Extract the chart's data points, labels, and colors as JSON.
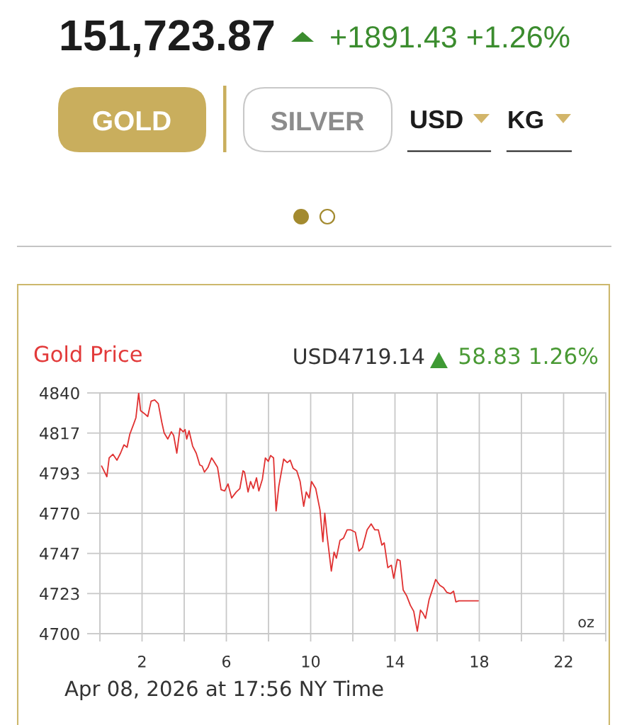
{
  "chart_data": {
    "type": "line",
    "title": "Gold Price",
    "annotations": [
      "151,723.87",
      "+1891.43 +1.26%",
      "GOLD",
      "SILVER",
      "USD",
      "KG",
      "USD4719.14",
      "58.83 1.26%",
      "oz",
      "Apr 08, 2026 at 17:56 NY Time"
    ],
    "x": [
      0.08,
      0.33,
      0.44,
      0.62,
      0.81,
      0.98,
      1.14,
      1.29,
      1.42,
      1.59,
      1.71,
      1.84,
      1.93,
      2.08,
      2.27,
      2.43,
      2.6,
      2.77,
      2.94,
      3.05,
      3.22,
      3.39,
      3.5,
      3.65,
      3.8,
      3.95,
      4.04,
      4.12,
      4.23,
      4.4,
      4.57,
      4.74,
      4.85,
      4.96,
      5.13,
      5.3,
      5.41,
      5.58,
      5.75,
      5.92,
      6.08,
      6.25,
      6.47,
      6.64,
      6.79,
      6.86,
      7.03,
      7.15,
      7.28,
      7.43,
      7.54,
      7.71,
      7.85,
      7.99,
      8.1,
      8.24,
      8.36,
      8.49,
      8.72,
      8.89,
      9.03,
      9.17,
      9.34,
      9.5,
      9.67,
      9.79,
      9.93,
      10.04,
      10.24,
      10.44,
      10.58,
      10.67,
      10.78,
      10.98,
      11.11,
      11.22,
      11.39,
      11.56,
      11.73,
      11.89,
      12.12,
      12.29,
      12.46,
      12.68,
      12.87,
      13.04,
      13.21,
      13.38,
      13.49,
      13.66,
      13.83,
      13.94,
      14.11,
      14.24,
      14.39,
      14.56,
      14.73,
      14.89,
      15.06,
      15.21,
      15.34,
      15.45,
      15.62,
      15.79,
      15.93,
      16.13,
      16.3,
      16.46,
      16.63,
      16.78,
      16.89,
      17.03,
      17.95
    ],
    "series": [
      {
        "color": "#e03131",
        "values": [
          4797.5,
          4791.3,
          4802.3,
          4804.3,
          4800.9,
          4805.0,
          4809.8,
          4808.4,
          4816.0,
          4821.5,
          4825.6,
          4840.0,
          4829.7,
          4828.3,
          4826.3,
          4835.2,
          4835.9,
          4833.8,
          4822.8,
          4816.7,
          4813.2,
          4817.4,
          4815.3,
          4805.0,
          4819.4,
          4817.4,
          4818.7,
          4813.2,
          4818.0,
          4809.1,
          4805.0,
          4798.1,
          4797.5,
          4794.0,
          4796.8,
          4802.2,
          4800.2,
          4796.8,
          4783.7,
          4783.0,
          4787.1,
          4778.9,
          4782.4,
          4784.4,
          4794.7,
          4794.0,
          4782.4,
          4788.5,
          4784.4,
          4790.6,
          4783.0,
          4789.9,
          4802.2,
          4800.2,
          4803.6,
          4802.2,
          4771.4,
          4785.8,
          4801.5,
          4799.5,
          4800.9,
          4796.1,
          4794.7,
          4788.5,
          4774.1,
          4782.4,
          4778.9,
          4788.5,
          4784.4,
          4772.1,
          4753.5,
          4770.0,
          4756.9,
          4736.4,
          4747.4,
          4743.9,
          4754.2,
          4755.6,
          4760.4,
          4760.4,
          4759.0,
          4748.0,
          4750.1,
          4760.4,
          4763.8,
          4760.4,
          4760.4,
          4751.5,
          4752.8,
          4738.4,
          4739.8,
          4732.2,
          4743.2,
          4742.5,
          4725.4,
          4721.9,
          4716.5,
          4713.0,
          4701.4,
          4713.7,
          4711.6,
          4708.9,
          4719.9,
          4726.1,
          4731.5,
          4728.1,
          4726.8,
          4724.0,
          4723.3,
          4724.7,
          4718.5,
          4719.1,
          4719.1
        ]
      }
    ],
    "xlim": [
      0,
      24
    ],
    "ylim": [
      4700,
      4840
    ],
    "xticks": [
      {
        "value": 0,
        "label": null
      },
      2,
      {
        "value": 4,
        "label": null
      },
      6,
      {
        "value": 8,
        "label": null
      },
      10,
      {
        "value": 12,
        "label": null
      },
      14,
      {
        "value": 16,
        "label": null
      },
      18,
      {
        "value": 20,
        "label": null
      },
      22,
      {
        "value": 24,
        "label": null
      }
    ],
    "yticks": [
      4700,
      {
        "value": 4723.33,
        "label": "4723"
      },
      {
        "value": 4746.67,
        "label": "4747"
      },
      4770,
      {
        "value": 4793.33,
        "label": "4793"
      },
      {
        "value": 4816.67,
        "label": "4817"
      },
      4840
    ],
    "grid": true
  }
}
